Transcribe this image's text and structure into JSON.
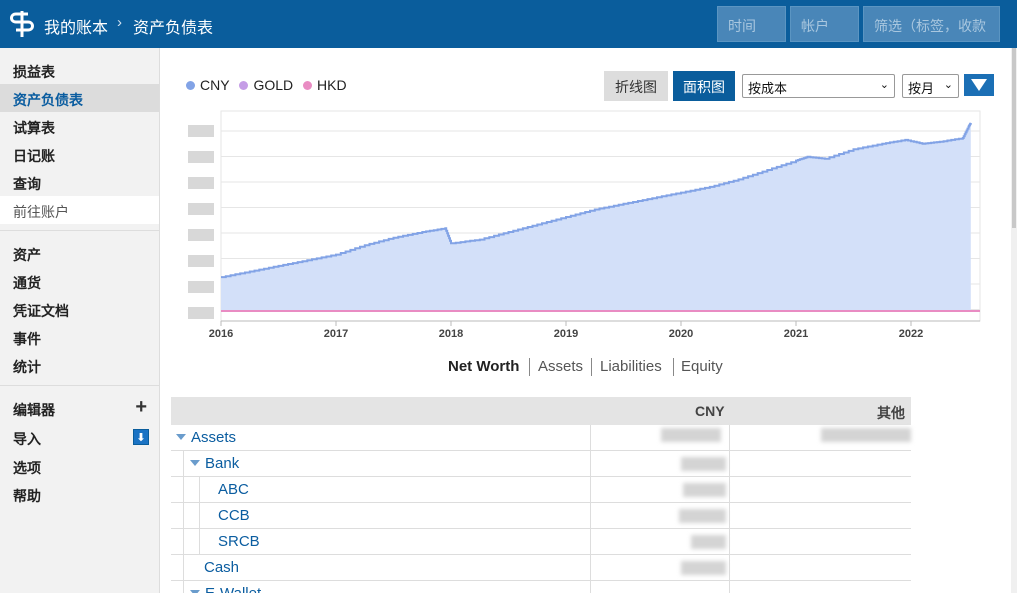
{
  "header": {
    "breadcrumb": [
      "我的账本",
      "资产负债表"
    ],
    "separator": "›",
    "time_placeholder": "时间",
    "account_placeholder": "帐户",
    "filter_placeholder": "筛选（标签，收款"
  },
  "sidebar": {
    "group1": [
      "损益表",
      "资产负债表",
      "试算表",
      "日记账",
      "查询",
      "前往账户"
    ],
    "group2": [
      "资产",
      "通货",
      "凭证文档",
      "事件",
      "统计"
    ],
    "group3": [
      "编辑器",
      "导入",
      "选项",
      "帮助"
    ],
    "active": "资产负债表"
  },
  "legend": [
    {
      "name": "CNY",
      "color": "#82a3e6"
    },
    {
      "name": "GOLD",
      "color": "#c59de6"
    },
    {
      "name": "HKD",
      "color": "#e98cc3"
    }
  ],
  "controls": {
    "line_chart": "折线图",
    "area_chart": "面积图",
    "conversion": "按成本",
    "interval": "按月"
  },
  "chart_data": {
    "type": "area",
    "x_ticks": [
      "2016",
      "2017",
      "2018",
      "2019",
      "2020",
      "2021",
      "2022"
    ],
    "series": [
      {
        "name": "CNY",
        "color": "#82a3e6",
        "x": [
          2016.0,
          2016.25,
          2016.5,
          2016.75,
          2017.0,
          2017.25,
          2017.5,
          2017.75,
          2017.95,
          2018.0,
          2018.25,
          2018.5,
          2018.75,
          2019.0,
          2019.25,
          2019.5,
          2019.75,
          2020.0,
          2020.25,
          2020.5,
          2020.75,
          2021.0,
          2021.1,
          2021.25,
          2021.5,
          2021.75,
          2021.95,
          2022.1,
          2022.25,
          2022.45,
          2022.5,
          2022.52
        ],
        "y": [
          0.18,
          0.21,
          0.24,
          0.27,
          0.3,
          0.35,
          0.39,
          0.42,
          0.44,
          0.36,
          0.38,
          0.42,
          0.46,
          0.5,
          0.54,
          0.57,
          0.6,
          0.63,
          0.66,
          0.7,
          0.75,
          0.8,
          0.82,
          0.81,
          0.86,
          0.89,
          0.91,
          0.89,
          0.9,
          0.92,
          0.98,
          1.0
        ]
      },
      {
        "name": "GOLD",
        "color": "#c59de6",
        "y_const": 0.0
      },
      {
        "name": "HKD",
        "color": "#e98cc3",
        "y_const": 0.0
      }
    ]
  },
  "tabs": [
    "Net Worth",
    "Assets",
    "Liabilities",
    "Equity"
  ],
  "table": {
    "headers": [
      "CNY",
      "其他"
    ],
    "rows": [
      "Assets",
      "Bank",
      "ABC",
      "CCB",
      "SRCB",
      "Cash",
      "E-Wallet"
    ]
  }
}
